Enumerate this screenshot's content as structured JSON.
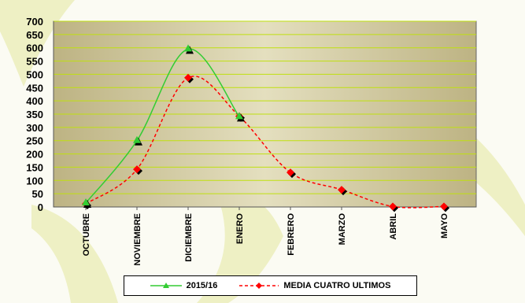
{
  "chart_data": {
    "type": "line",
    "title": "",
    "xlabel": "",
    "ylabel": "",
    "categories": [
      "OCTUBRE",
      "NOVIEMBRE",
      "DICIEMBRE",
      "ENERO",
      "FEBRERO",
      "MARZO",
      "ABRIL",
      "MAYO"
    ],
    "ylim": [
      0,
      700
    ],
    "yticks": [
      0,
      50,
      100,
      150,
      200,
      250,
      300,
      350,
      400,
      450,
      500,
      550,
      600,
      650,
      700
    ],
    "grid": true,
    "legend_position": "bottom",
    "series": [
      {
        "name": "2015/16",
        "values": [
          15,
          250,
          595,
          340,
          null,
          null,
          null,
          null
        ],
        "color": "#33cc33",
        "marker": "triangle",
        "line_style": "solid"
      },
      {
        "name": "MEDIA CUATRO ULTIMOS",
        "values": [
          12,
          142,
          487,
          342,
          130,
          65,
          2,
          2
        ],
        "color": "#ff0000",
        "marker": "diamond",
        "line_style": "dashed"
      }
    ]
  },
  "colors": {
    "plot_background": "#d6cfa4",
    "gridline": "#bfe00f",
    "page_background": "#fbfbf3",
    "decor_leaf": "#eef0c4"
  }
}
